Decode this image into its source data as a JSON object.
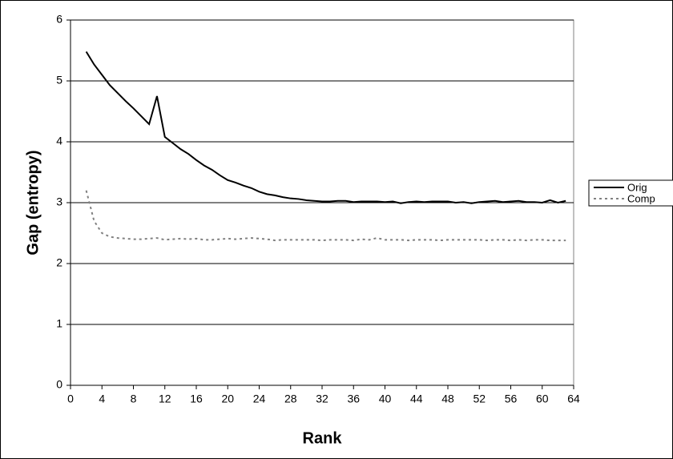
{
  "chart_data": {
    "type": "line",
    "x_label": "Rank",
    "y_label": "Gap (entropy)",
    "x": [
      2,
      3,
      4,
      5,
      6,
      7,
      8,
      9,
      10,
      11,
      12,
      13,
      14,
      15,
      16,
      17,
      18,
      19,
      20,
      21,
      22,
      23,
      24,
      25,
      26,
      27,
      28,
      29,
      30,
      31,
      32,
      33,
      34,
      35,
      36,
      37,
      38,
      39,
      40,
      41,
      42,
      43,
      44,
      45,
      46,
      47,
      48,
      49,
      50,
      51,
      52,
      53,
      54,
      55,
      56,
      57,
      58,
      59,
      60,
      61,
      62,
      63
    ],
    "series": [
      {
        "name": "Orig",
        "color": "#000000",
        "dash": false,
        "values": [
          5.48,
          5.27,
          5.1,
          4.93,
          4.8,
          4.67,
          4.55,
          4.42,
          4.29,
          4.75,
          4.08,
          3.98,
          3.88,
          3.8,
          3.7,
          3.61,
          3.54,
          3.45,
          3.37,
          3.33,
          3.28,
          3.24,
          3.18,
          3.14,
          3.12,
          3.09,
          3.07,
          3.06,
          3.04,
          3.03,
          3.02,
          3.02,
          3.03,
          3.03,
          3.01,
          3.02,
          3.02,
          3.02,
          3.01,
          3.02,
          2.99,
          3.01,
          3.02,
          3.01,
          3.02,
          3.02,
          3.02,
          3.0,
          3.01,
          2.99,
          3.01,
          3.02,
          3.03,
          3.01,
          3.02,
          3.03,
          3.01,
          3.01,
          3.0,
          3.04,
          3.0,
          3.03
        ]
      },
      {
        "name": "Comp",
        "color": "#808080",
        "dash": true,
        "values": [
          3.2,
          2.7,
          2.5,
          2.44,
          2.42,
          2.41,
          2.4,
          2.4,
          2.41,
          2.42,
          2.39,
          2.4,
          2.41,
          2.4,
          2.41,
          2.39,
          2.39,
          2.4,
          2.41,
          2.4,
          2.41,
          2.42,
          2.41,
          2.4,
          2.38,
          2.39,
          2.39,
          2.39,
          2.39,
          2.39,
          2.38,
          2.39,
          2.39,
          2.39,
          2.38,
          2.4,
          2.39,
          2.42,
          2.39,
          2.39,
          2.39,
          2.38,
          2.39,
          2.39,
          2.39,
          2.38,
          2.39,
          2.39,
          2.39,
          2.39,
          2.39,
          2.38,
          2.39,
          2.39,
          2.38,
          2.39,
          2.38,
          2.39,
          2.39,
          2.38,
          2.38,
          2.38
        ]
      }
    ],
    "xlim": [
      0,
      64
    ],
    "xticks": [
      0,
      4,
      8,
      12,
      16,
      20,
      24,
      28,
      32,
      36,
      40,
      44,
      48,
      52,
      56,
      60,
      64
    ],
    "ylim": [
      0,
      6
    ],
    "yticks": [
      0,
      1,
      2,
      3,
      4,
      5,
      6
    ],
    "grid": true,
    "legend": "right"
  }
}
